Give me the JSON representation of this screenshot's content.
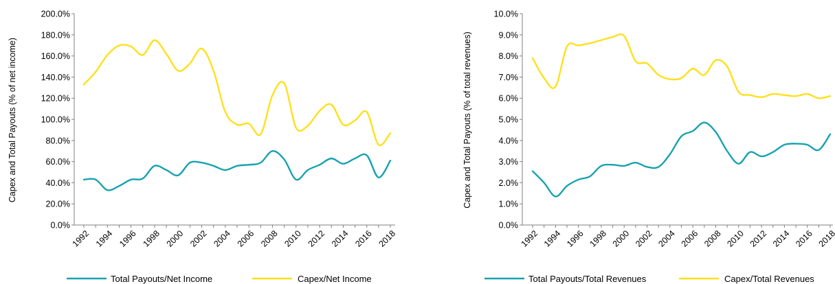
{
  "colors": {
    "teal": "#17A2AE",
    "yellow": "#FFE01A",
    "axis": "#7F7F7F"
  },
  "chart_data": [
    {
      "type": "line",
      "ylabel": "Capex and Total Payouts  (% of net income)",
      "ylim": [
        0,
        200
      ],
      "y_ticks": [
        "0.0%",
        "20.0%",
        "40.0%",
        "60.0%",
        "80.0%",
        "100.0%",
        "120.0%",
        "140.0%",
        "160.0%",
        "180.0%",
        "200.0%"
      ],
      "x_tick_labels": [
        "1992",
        "1994",
        "1996",
        "1998",
        "2000",
        "2002",
        "2004",
        "2006",
        "2008",
        "2010",
        "2012",
        "2014",
        "2016",
        "2018"
      ],
      "grid": false,
      "legend": "bottom",
      "x": [
        1992,
        1993,
        1994,
        1995,
        1996,
        1997,
        1998,
        1999,
        2000,
        2001,
        2002,
        2003,
        2004,
        2005,
        2006,
        2007,
        2008,
        2009,
        2010,
        2011,
        2012,
        2013,
        2014,
        2015,
        2016,
        2017,
        2018
      ],
      "series": [
        {
          "name": "Total Payouts/Net Income",
          "color": "teal",
          "values": [
            43,
            43,
            33,
            37,
            43,
            44,
            56,
            52,
            47,
            59,
            59,
            56,
            52,
            56,
            57,
            59,
            70,
            62,
            43,
            52,
            57,
            63,
            58,
            63,
            66,
            45,
            61
          ]
        },
        {
          "name": "Capex/Net Income",
          "color": "yellow",
          "values": [
            133,
            145,
            161,
            170,
            169,
            161,
            175,
            162,
            146,
            153,
            167,
            146,
            107,
            95,
            96,
            86,
            123,
            134,
            92,
            94,
            108,
            114,
            95,
            99,
            107,
            76,
            87
          ]
        }
      ]
    },
    {
      "type": "line",
      "ylabel": "Capex and Total Payouts  (% of total revenues)",
      "ylim": [
        0,
        10
      ],
      "y_ticks": [
        "0.0%",
        "1.0%",
        "2.0%",
        "3.0%",
        "4.0%",
        "5.0%",
        "6.0%",
        "7.0%",
        "8.0%",
        "9.0%",
        "10.0%"
      ],
      "x_tick_labels": [
        "1992",
        "1994",
        "1996",
        "1998",
        "2000",
        "2002",
        "2004",
        "2006",
        "2008",
        "2010",
        "2012",
        "2014",
        "2016",
        "2018"
      ],
      "grid": false,
      "legend": "bottom",
      "x": [
        1992,
        1993,
        1994,
        1995,
        1996,
        1997,
        1998,
        1999,
        2000,
        2001,
        2002,
        2003,
        2004,
        2005,
        2006,
        2007,
        2008,
        2009,
        2010,
        2011,
        2012,
        2013,
        2014,
        2015,
        2016,
        2017,
        2018
      ],
      "series": [
        {
          "name": "Total Payouts/Total Revenues",
          "color": "teal",
          "values": [
            2.55,
            2.0,
            1.35,
            1.85,
            2.15,
            2.3,
            2.8,
            2.85,
            2.8,
            2.95,
            2.75,
            2.75,
            3.35,
            4.2,
            4.45,
            4.85,
            4.4,
            3.5,
            2.9,
            3.45,
            3.25,
            3.45,
            3.8,
            3.85,
            3.8,
            3.55,
            4.3
          ]
        },
        {
          "name": "Capex/Total Revenues",
          "color": "yellow",
          "values": [
            7.9,
            6.95,
            6.55,
            8.45,
            8.5,
            8.6,
            8.75,
            8.9,
            8.95,
            7.75,
            7.65,
            7.1,
            6.9,
            6.95,
            7.4,
            7.1,
            7.8,
            7.5,
            6.3,
            6.15,
            6.05,
            6.2,
            6.15,
            6.1,
            6.2,
            6.0,
            6.1
          ]
        }
      ]
    }
  ]
}
